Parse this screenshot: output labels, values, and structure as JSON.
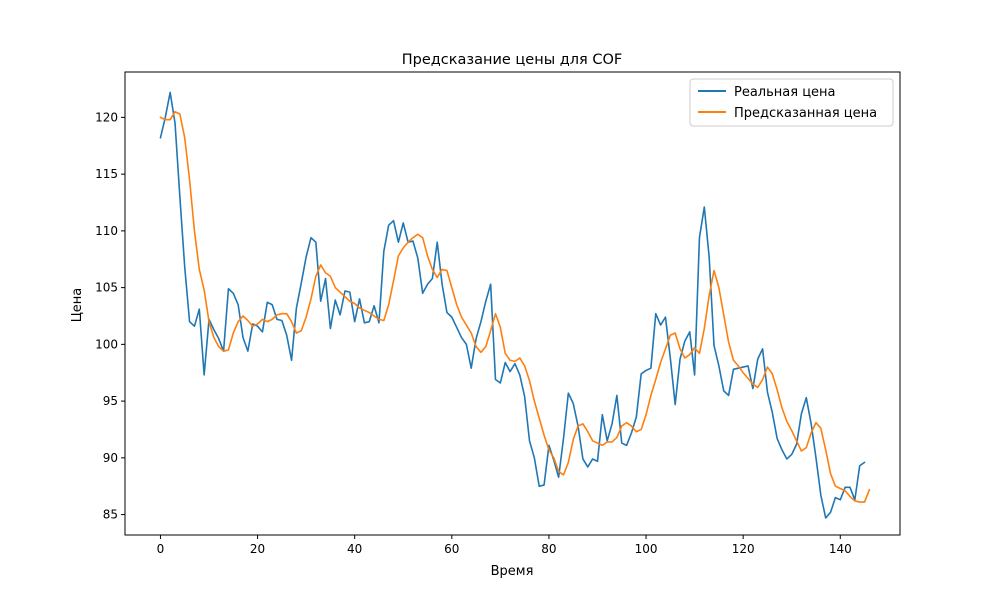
{
  "chart_data": {
    "type": "line",
    "title": "Предсказание цены для COF",
    "xlabel": "Время",
    "ylabel": "Цена",
    "xlim": [
      -7.3,
      152.3
    ],
    "ylim": [
      83.2,
      124.0
    ],
    "xticks": [
      0,
      20,
      40,
      60,
      80,
      100,
      120,
      140
    ],
    "yticks": [
      85,
      90,
      95,
      100,
      105,
      110,
      115,
      120
    ],
    "grid": false,
    "legend_position": "top-right",
    "series": [
      {
        "name": "Реальная цена",
        "color": "#1f77b4",
        "values": [
          118.2,
          120.0,
          122.2,
          119.5,
          113.0,
          106.8,
          102.0,
          101.6,
          103.1,
          97.3,
          102.2,
          101.3,
          100.5,
          99.4,
          104.9,
          104.5,
          103.5,
          100.6,
          99.4,
          101.8,
          101.6,
          101.1,
          103.7,
          103.5,
          102.2,
          102.1,
          100.8,
          98.6,
          103.2,
          105.4,
          107.7,
          109.4,
          109.0,
          103.8,
          105.8,
          101.4,
          103.9,
          102.6,
          104.7,
          104.6,
          102.0,
          104.0,
          101.9,
          102.0,
          103.4,
          101.9,
          108.2,
          110.5,
          110.9,
          109.0,
          110.7,
          109.0,
          109.1,
          107.6,
          104.5,
          105.3,
          105.8,
          109.0,
          105.3,
          102.8,
          102.4,
          101.5,
          100.6,
          100.0,
          97.9,
          100.5,
          102.0,
          103.8,
          105.3,
          96.9,
          96.6,
          98.4,
          97.6,
          98.3,
          97.3,
          95.4,
          91.5,
          90.0,
          87.5,
          87.6,
          91.1,
          89.8,
          88.3,
          91.7,
          95.7,
          94.8,
          92.8,
          89.9,
          89.2,
          89.9,
          89.7,
          93.8,
          91.5,
          93.0,
          95.5,
          91.3,
          91.1,
          92.2,
          93.6,
          97.4,
          97.7,
          97.9,
          102.7,
          101.7,
          102.4,
          98.8,
          94.7,
          98.7,
          100.3,
          101.1,
          97.3,
          109.4,
          112.1,
          107.7,
          99.9,
          98.1,
          95.9,
          95.5,
          97.8,
          97.9,
          98.0,
          98.1,
          96.1,
          98.7,
          99.6,
          95.8,
          94.0,
          91.7,
          90.7,
          89.9,
          90.3,
          91.2,
          93.9,
          95.3,
          93.0,
          90.0,
          86.7,
          84.7,
          85.2,
          86.5,
          86.3,
          87.4,
          87.4,
          86.3,
          89.3,
          89.6
        ]
      },
      {
        "name": "Предсказанная цена",
        "color": "#ff7f0e",
        "values": [
          120.0,
          119.8,
          119.8,
          120.5,
          120.3,
          118.2,
          114.5,
          110.0,
          106.6,
          104.8,
          102.0,
          100.6,
          99.8,
          99.4,
          99.5,
          101.0,
          102.0,
          102.5,
          102.1,
          101.6,
          101.8,
          102.2,
          102.0,
          102.2,
          102.6,
          102.7,
          102.7,
          102.0,
          101.0,
          101.2,
          102.4,
          104.0,
          106.0,
          107.0,
          106.3,
          106.0,
          105.0,
          104.6,
          104.2,
          103.8,
          103.6,
          103.2,
          103.0,
          102.8,
          102.5,
          102.2,
          102.1,
          103.5,
          105.6,
          107.8,
          108.5,
          109.0,
          109.4,
          109.7,
          109.4,
          107.8,
          106.6,
          105.9,
          106.6,
          106.5,
          105.0,
          103.5,
          102.4,
          101.7,
          101.0,
          99.8,
          99.3,
          99.8,
          101.2,
          102.7,
          101.5,
          99.2,
          98.6,
          98.5,
          98.8,
          98.1,
          96.8,
          95.0,
          93.5,
          92.0,
          90.7,
          90.0,
          88.8,
          88.5,
          89.6,
          91.6,
          92.8,
          93.0,
          92.3,
          91.5,
          91.3,
          91.1,
          91.4,
          91.4,
          91.8,
          92.8,
          93.1,
          92.8,
          92.3,
          92.5,
          93.8,
          95.5,
          96.9,
          98.4,
          99.6,
          100.8,
          101.0,
          99.6,
          98.8,
          99.1,
          99.7,
          99.2,
          101.4,
          104.3,
          106.5,
          105.0,
          102.6,
          100.2,
          98.6,
          98.1,
          97.5,
          97.0,
          96.5,
          96.2,
          96.9,
          98.0,
          97.4,
          96.0,
          94.4,
          93.2,
          92.4,
          91.5,
          90.6,
          90.9,
          92.2,
          93.1,
          92.6,
          90.7,
          88.6,
          87.5,
          87.3,
          87.1,
          86.6,
          86.2,
          86.1,
          86.1,
          87.2
        ]
      }
    ]
  },
  "legend": {
    "items": [
      "Реальная цена",
      "Предсказанная цена"
    ]
  }
}
